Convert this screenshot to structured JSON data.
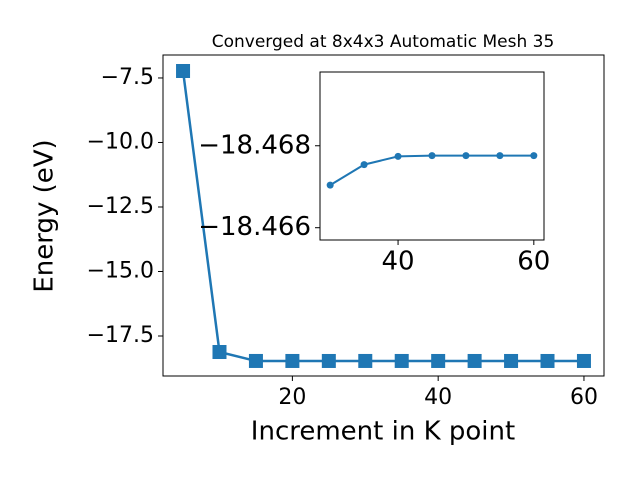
{
  "chart_data": [
    {
      "type": "line",
      "title": "Converged at 8x4x3 Automatic Mesh 35",
      "x_label": "Increment in K point",
      "y_label": "Energy (eV)",
      "x": [
        5,
        10,
        15,
        20,
        25,
        30,
        35,
        40,
        45,
        50,
        55,
        60
      ],
      "series": [
        {
          "color": "#1f77b4",
          "marker": "square",
          "values": [
            -7.23,
            -18.12,
            -18.467,
            -18.4675,
            -18.4677,
            -18.467,
            -18.4675,
            -18.4677,
            -18.4677,
            -18.4677,
            -18.4677,
            -18.4677
          ]
        }
      ],
      "xlim": [
        2.25,
        62.75
      ],
      "xticks": [
        20,
        40,
        60
      ],
      "ylim": [
        -19.05,
        -6.61
      ],
      "yticks": [
        {
          "value": -17.5,
          "label": "−17.5"
        },
        {
          "value": -15,
          "label": "−15.0"
        },
        {
          "value": -12.5,
          "label": "−12.5"
        },
        {
          "value": -10,
          "label": "−10.0"
        },
        {
          "value": -7.5,
          "label": "−7.5"
        }
      ]
    },
    {
      "type": "line",
      "x": [
        30,
        35,
        40,
        45,
        50,
        55,
        60
      ],
      "series": [
        {
          "color": "#1f77b4",
          "marker": "circle",
          "values": [
            -18.46704,
            -18.46754,
            -18.46774,
            -18.46776,
            -18.46776,
            -18.46776,
            -18.46776
          ]
        }
      ],
      "xlim": [
        28.5,
        61.5
      ],
      "xticks": [
        40,
        60
      ],
      "ylim": [
        -18.4657,
        -18.4698
      ],
      "yticks": [
        {
          "value": -18.466,
          "label": "−18.466"
        },
        {
          "value": -18.468,
          "label": "−18.468"
        }
      ]
    }
  ]
}
